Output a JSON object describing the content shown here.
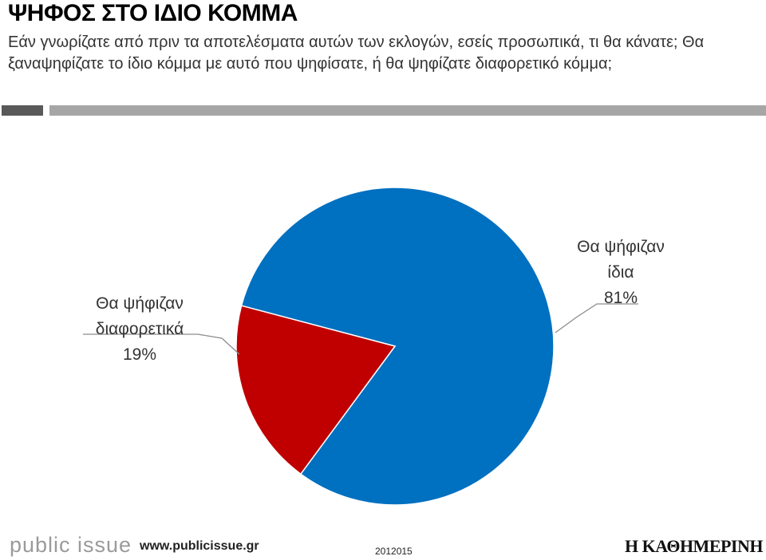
{
  "header": {
    "title": "ΨΗΦΟΣ ΣΤΟ ΙΔΙΟ ΚΟΜΜΑ",
    "question": "Εάν γνωρίζατε από πριν τα αποτελέσματα αυτών των εκλογών, εσείς προσωπικά, τι θα κάνατε; Θα ξαναψηφίζατε το ίδιο κόμμα με αυτό που ψηφίσατε, ή θα ψηφίζατε διαφορετικό κόμμα;"
  },
  "chart_data": {
    "type": "pie",
    "title": "ΨΗΦΟΣ ΣΤΟ ΙΔΙΟ ΚΟΜΜΑ",
    "slices": [
      {
        "label_line1": "Θα ψήφιζαν",
        "label_line2": "ίδια",
        "value": 81,
        "value_label": "81%",
        "color": "#0070c0"
      },
      {
        "label_line1": "Θα ψήφιζαν",
        "label_line2": "διαφορετικά",
        "value": 19,
        "value_label": "19%",
        "color": "#c00000"
      }
    ]
  },
  "footer": {
    "logo_left": "public issue",
    "url": "www.publicissue.gr",
    "code": "2012015",
    "logo_right": "Η ΚΑΘΗΜΕΡΙΝΗ"
  }
}
